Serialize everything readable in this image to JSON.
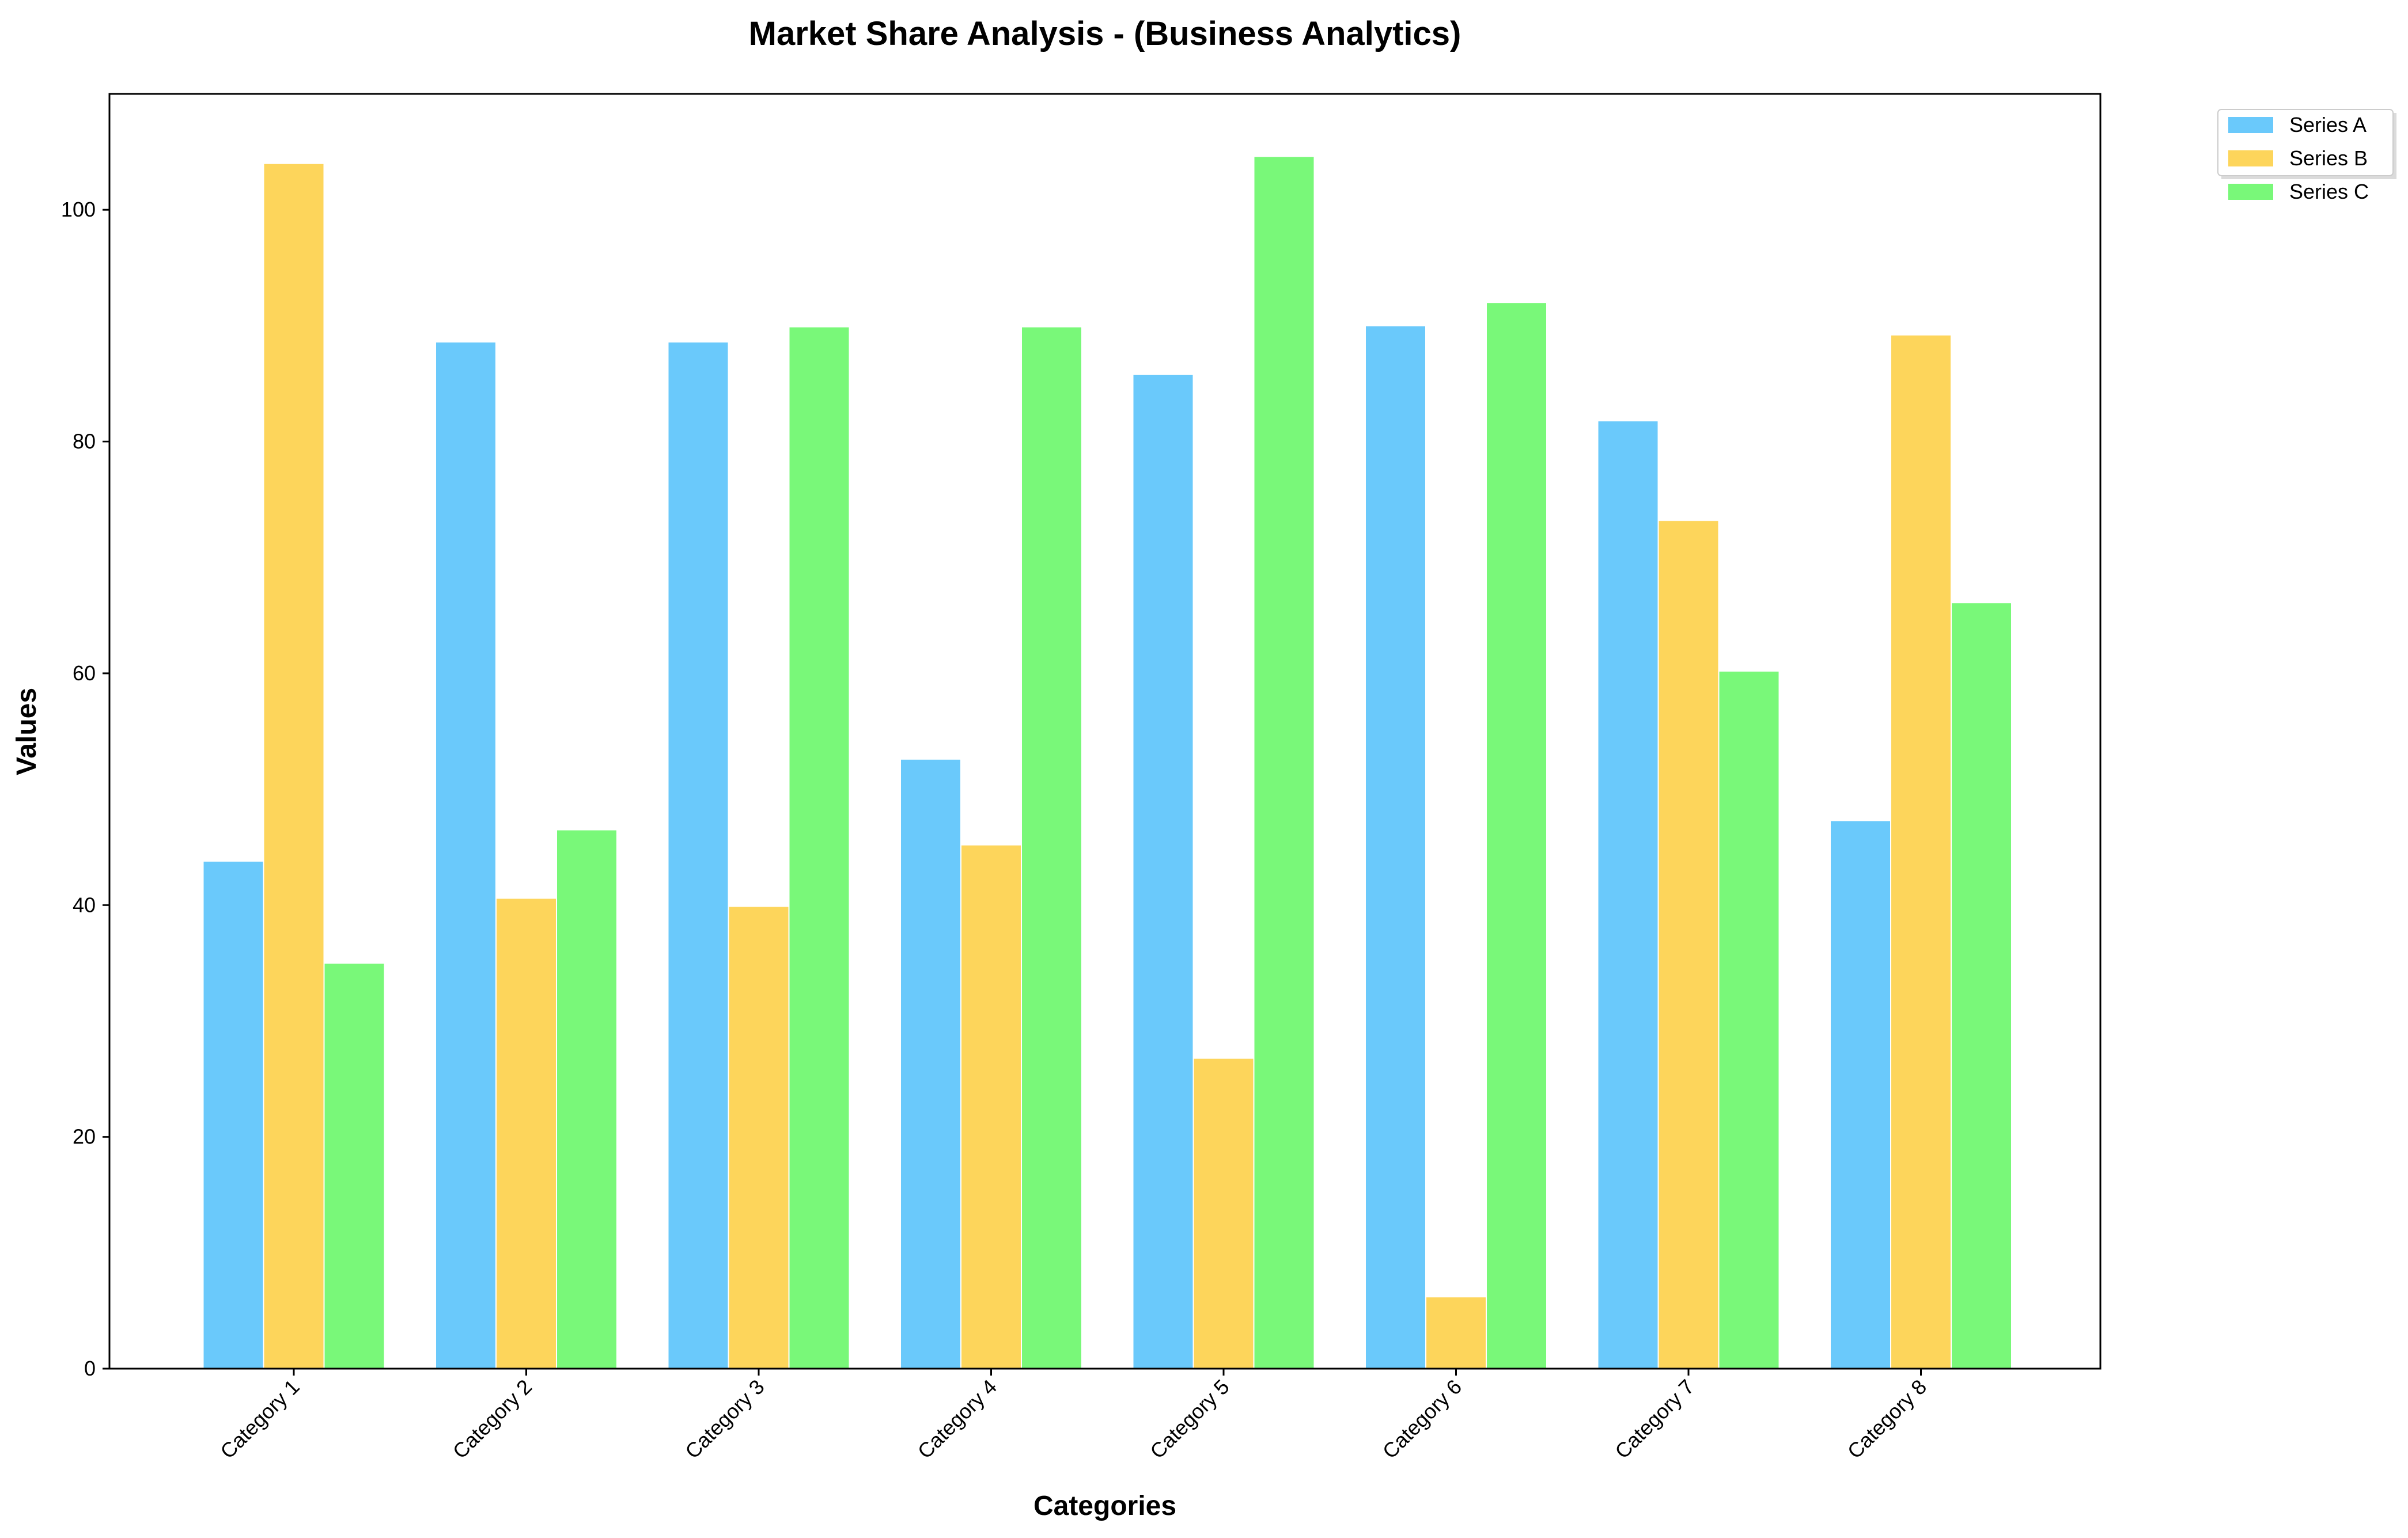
{
  "chart_data": {
    "type": "bar",
    "title": "Market Share Analysis - (Business Analytics)",
    "xlabel": "Categories",
    "ylabel": "Values",
    "categories": [
      "Category 1",
      "Category 2",
      "Category 3",
      "Category 4",
      "Category 5",
      "Category 6",
      "Category 7",
      "Category 8"
    ],
    "series": [
      {
        "name": "Series A",
        "color": "#6ac9fb",
        "values": [
          43.8,
          88.6,
          88.6,
          52.6,
          85.8,
          90.0,
          81.8,
          47.3
        ]
      },
      {
        "name": "Series B",
        "color": "#fdd55b",
        "values": [
          104.0,
          40.6,
          39.9,
          45.2,
          26.8,
          6.2,
          73.2,
          89.2
        ]
      },
      {
        "name": "Series C",
        "color": "#79f879",
        "values": [
          35.0,
          46.5,
          89.9,
          89.9,
          104.6,
          92.0,
          60.2,
          66.1
        ]
      }
    ],
    "ylim": [
      0,
      110
    ],
    "yticks": [
      0,
      20,
      40,
      60,
      80,
      100
    ],
    "xtick_rotation": 45,
    "grid": false,
    "legend": {
      "placement": "outside-top-right",
      "entries": [
        "Series A",
        "Series B",
        "Series C"
      ]
    },
    "bar_edge_color": "#ffffff"
  }
}
